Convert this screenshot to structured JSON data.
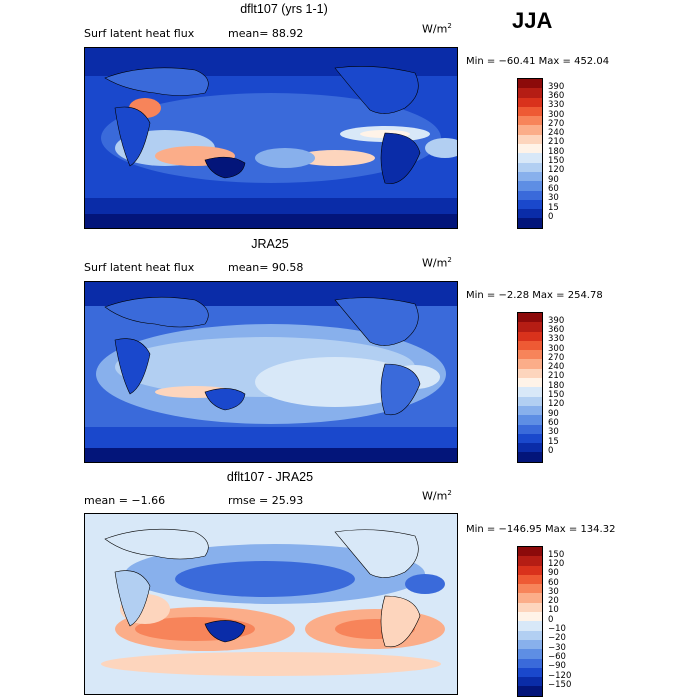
{
  "season": "JJA",
  "panels": [
    {
      "title": "dflt107 (yrs 1-1)",
      "field_label": "Surf latent heat flux",
      "stat_text": "mean=  88.92",
      "units": "W/m",
      "units_sup": "2",
      "minmax": "Min = −60.41 Max = 452.04",
      "colorbar": {
        "labels": [
          "390",
          "360",
          "330",
          "300",
          "270",
          "240",
          "210",
          "180",
          "150",
          "120",
          "90",
          "60",
          "30",
          "15",
          "0"
        ],
        "colors": [
          "#8c0a0a",
          "#b51d14",
          "#d9321c",
          "#ee5a34",
          "#f7845a",
          "#fbad89",
          "#fdd5bd",
          "#fff3e8",
          "#d8e8f8",
          "#b2cff2",
          "#88b0ec",
          "#5e8ee4",
          "#3a6ada",
          "#1a48cc",
          "#0a2ca8",
          "#03157a"
        ]
      }
    },
    {
      "title": "JRA25",
      "field_label": "Surf latent heat flux",
      "stat_text": "mean=  90.58",
      "units": "W/m",
      "units_sup": "2",
      "minmax": "Min =  −2.28 Max = 254.78",
      "colorbar": {
        "labels": [
          "390",
          "360",
          "330",
          "300",
          "270",
          "240",
          "210",
          "180",
          "150",
          "120",
          "90",
          "60",
          "30",
          "15",
          "0"
        ],
        "colors": [
          "#8c0a0a",
          "#b51d14",
          "#d9321c",
          "#ee5a34",
          "#f7845a",
          "#fbad89",
          "#fdd5bd",
          "#fff3e8",
          "#d8e8f8",
          "#b2cff2",
          "#88b0ec",
          "#5e8ee4",
          "#3a6ada",
          "#1a48cc",
          "#0a2ca8",
          "#03157a"
        ]
      }
    },
    {
      "title": "dflt107 - JRA25",
      "field_label": "mean =  −1.66",
      "stat_text": "rmse =  25.93",
      "units": "W/m",
      "units_sup": "2",
      "minmax": "Min = −146.95 Max = 134.32",
      "colorbar": {
        "labels": [
          "150",
          "120",
          "90",
          "60",
          "30",
          "20",
          "10",
          "0",
          "−10",
          "−20",
          "−30",
          "−60",
          "−90",
          "−120",
          "−150"
        ],
        "colors": [
          "#8c0a0a",
          "#b51d14",
          "#d9321c",
          "#ee5a34",
          "#f7845a",
          "#fbad89",
          "#fdd5bd",
          "#fff3e8",
          "#d8e8f8",
          "#b2cff2",
          "#88b0ec",
          "#5e8ee4",
          "#3a6ada",
          "#1a48cc",
          "#0a2ca8",
          "#03157a"
        ]
      }
    }
  ]
}
